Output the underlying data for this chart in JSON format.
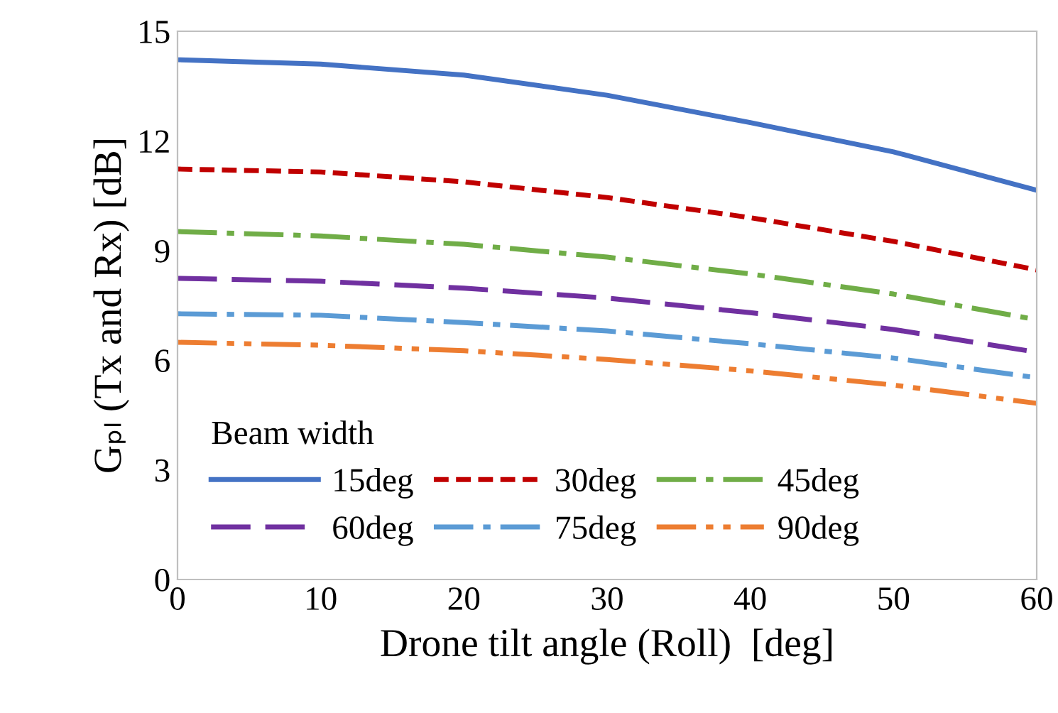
{
  "chart_data": {
    "type": "line",
    "xlabel": "Drone tilt angle (Roll)  [deg]",
    "ylabel": "Gₚₗ (Tx and Rx) [dB]",
    "legend_title": "Beam width",
    "legend": "bottom left",
    "grid": false,
    "marker": "none",
    "x": [
      0,
      10,
      20,
      30,
      40,
      50,
      60
    ],
    "xlim": [
      0,
      60
    ],
    "xticks": [
      0,
      10,
      20,
      30,
      40,
      50,
      60
    ],
    "ylim": [
      0,
      15
    ],
    "yticks": [
      0,
      3,
      6,
      9,
      12,
      15
    ],
    "series": [
      {
        "name": "15deg",
        "color": "#4472c4",
        "line_style": "solid",
        "values": [
          14.22,
          14.1,
          13.8,
          13.25,
          12.5,
          11.7,
          10.65
        ]
      },
      {
        "name": "30deg",
        "color": "#c00000",
        "line_style": "dashed",
        "values": [
          11.23,
          11.15,
          10.88,
          10.45,
          9.9,
          9.25,
          8.47
        ]
      },
      {
        "name": "45deg",
        "color": "#70ad47",
        "line_style": "dashdot",
        "values": [
          9.52,
          9.4,
          9.17,
          8.82,
          8.36,
          7.81,
          7.11
        ]
      },
      {
        "name": "60deg",
        "color": "#7030a0",
        "line_style": "longdash",
        "values": [
          8.24,
          8.16,
          7.97,
          7.7,
          7.3,
          6.84,
          6.22
        ]
      },
      {
        "name": "75deg",
        "color": "#5b9bd5",
        "line_style": "dashdot",
        "values": [
          7.27,
          7.23,
          7.03,
          6.8,
          6.45,
          6.06,
          5.52
        ]
      },
      {
        "name": "90deg",
        "color": "#ed7d31",
        "line_style": "dashdotdot",
        "values": [
          6.49,
          6.41,
          6.26,
          6.02,
          5.71,
          5.32,
          4.82
        ]
      }
    ]
  }
}
